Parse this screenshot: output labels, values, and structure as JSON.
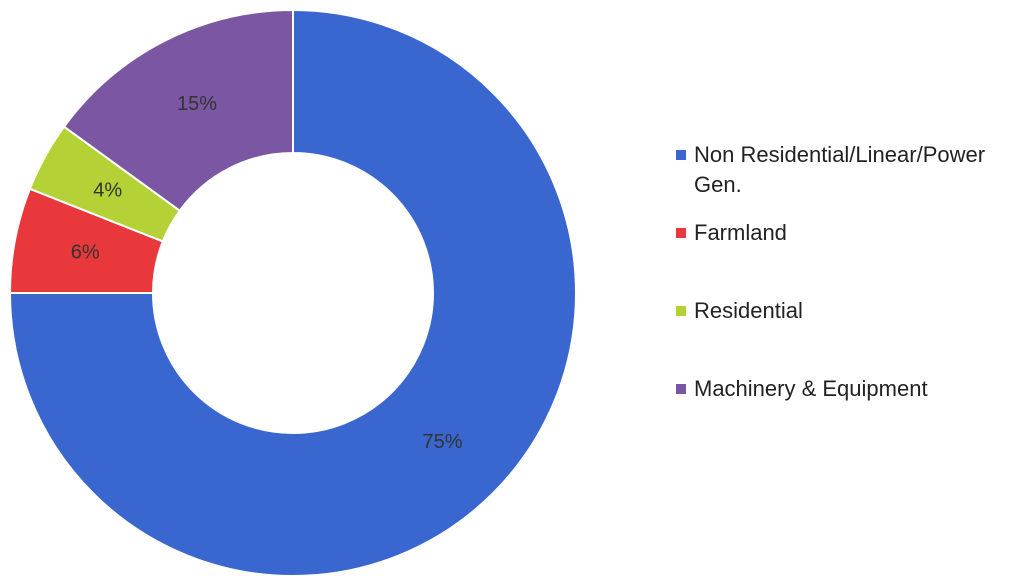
{
  "chart_data": {
    "type": "donut",
    "categories": [
      "Non Residential/Linear/Power Gen.",
      "Farmland",
      "Residential",
      "Machinery & Equipment"
    ],
    "values": [
      75,
      6,
      4,
      15
    ],
    "value_labels": [
      "75%",
      "6%",
      "4%",
      "15%"
    ],
    "colors": [
      "#3a66d0",
      "#e8383c",
      "#b4d136",
      "#7b56a2"
    ],
    "legend": "right"
  }
}
